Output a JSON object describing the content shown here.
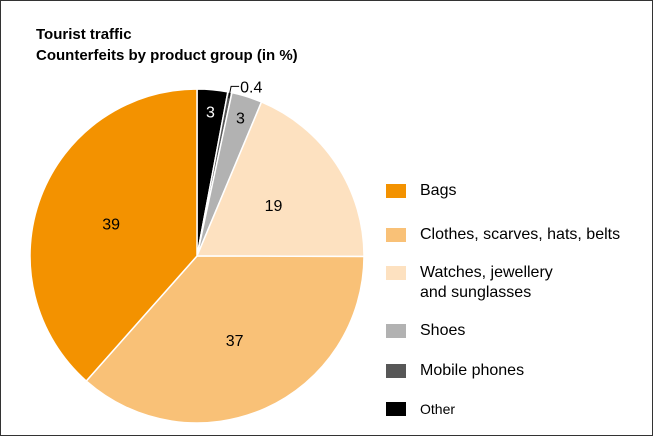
{
  "chart_data": {
    "type": "pie",
    "title": "Tourist traffic",
    "subtitle": "Counterfeits by product group (in %)",
    "slices": [
      {
        "label": "Other",
        "value": 3,
        "value_label": "3",
        "color": "#000000"
      },
      {
        "label": "Mobile phones",
        "value": 0.4,
        "value_label": "0.4",
        "color": "#575757"
      },
      {
        "label": "Shoes",
        "value": 3,
        "value_label": "3",
        "color": "#b2b2b2"
      },
      {
        "label": "Watches, jewellery and sunglasses",
        "label_lines": [
          "Watches, jewellery",
          "and sunglasses"
        ],
        "value": 19,
        "value_label": "19",
        "color": "#fde1c0"
      },
      {
        "label": "Clothes, scarves, hats, belts",
        "value": 37,
        "value_label": "37",
        "color": "#f9c177"
      },
      {
        "label": "Bags",
        "value": 39,
        "value_label": "39",
        "color": "#f39200"
      }
    ],
    "legend_order": [
      "Bags",
      "Clothes, scarves, hats, belts",
      "Watches, jewellery and sunglasses",
      "Shoes",
      "Mobile phones",
      "Other"
    ],
    "legend_position": "right",
    "start_angle": "12 o'clock",
    "direction": "clockwise"
  }
}
